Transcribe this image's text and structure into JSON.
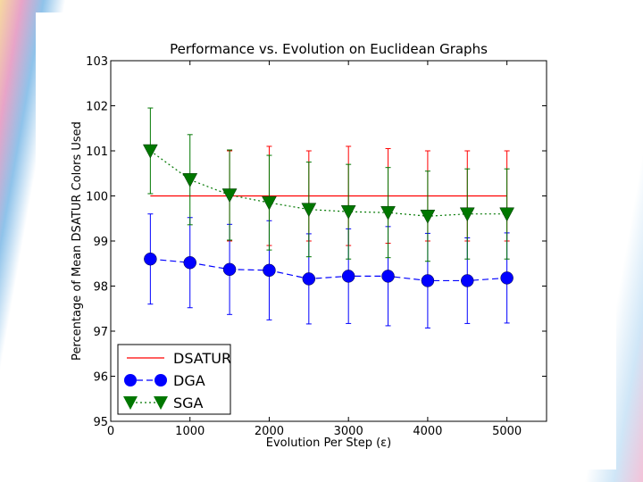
{
  "chart_data": {
    "type": "line",
    "title": "Performance vs. Evolution on Euclidean Graphs",
    "xlabel": "Evolution Per Step (ε)",
    "ylabel": "Percentage of Mean DSATUR Colors Used",
    "xlim": [
      0,
      5500
    ],
    "ylim": [
      95,
      103
    ],
    "x_ticks": [
      0,
      1000,
      2000,
      3000,
      4000,
      5000
    ],
    "y_ticks": [
      95,
      96,
      97,
      98,
      99,
      100,
      101,
      102,
      103
    ],
    "x": [
      500,
      1000,
      1500,
      2000,
      2500,
      3000,
      3500,
      4000,
      4500,
      5000
    ],
    "series": [
      {
        "name": "DSATUR",
        "color": "#ff0000",
        "style": "solid",
        "marker": "none",
        "values": [
          100,
          100,
          100,
          100,
          100,
          100,
          100,
          100,
          100,
          100
        ],
        "errors": [
          0,
          0,
          1.0,
          1.1,
          1.0,
          1.1,
          1.05,
          1.0,
          1.0,
          1.0
        ]
      },
      {
        "name": "DGA",
        "color": "#0000ff",
        "style": "dashed",
        "marker": "circle",
        "values": [
          98.6,
          98.52,
          98.37,
          98.35,
          98.16,
          98.22,
          98.22,
          98.12,
          98.12,
          98.18
        ],
        "errors": [
          1.0,
          1.0,
          1.0,
          1.1,
          1.0,
          1.05,
          1.1,
          1.05,
          0.95,
          1.0
        ]
      },
      {
        "name": "SGA",
        "color": "#007700",
        "style": "dotted",
        "marker": "triangle-down",
        "values": [
          101.0,
          100.36,
          100.02,
          99.85,
          99.7,
          99.65,
          99.63,
          99.55,
          99.6,
          99.6
        ],
        "errors": [
          0.95,
          1.0,
          1.0,
          1.05,
          1.05,
          1.05,
          1.0,
          1.0,
          1.0,
          1.0
        ]
      }
    ],
    "legend_position": "bottom-left"
  }
}
